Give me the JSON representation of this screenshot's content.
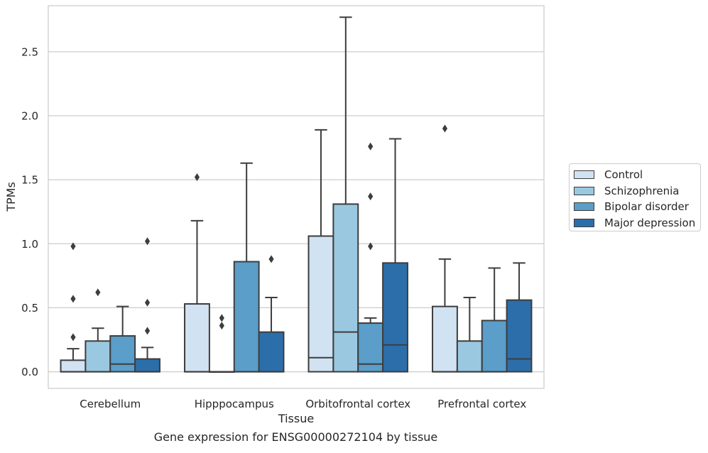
{
  "chart_data": {
    "type": "box",
    "title": "",
    "xlabel": "Tissue",
    "ylabel": "TPMs",
    "caption": "Gene expression for ENSG00000272104 by tissue",
    "ylim": [
      -0.13,
      2.86
    ],
    "yticks": [
      "0.0",
      "0.5",
      "1.0",
      "1.5",
      "2.0",
      "2.5"
    ],
    "grid": "horizontal",
    "legend_position": "right",
    "categories": [
      "Cerebellum",
      "Hipppocampus",
      "Orbitofrontal cortex",
      "Prefrontal cortex"
    ],
    "series": [
      {
        "name": "Control",
        "color": "#d1e2f2",
        "boxes": [
          {
            "whisker_low": 0.0,
            "q1": 0.0,
            "median": 0.0,
            "q3": 0.09,
            "whisker_high": 0.18,
            "outliers": [
              0.27,
              0.57,
              0.98
            ]
          },
          {
            "whisker_low": 0.0,
            "q1": 0.0,
            "median": 0.0,
            "q3": 0.53,
            "whisker_high": 1.18,
            "outliers": [
              1.52
            ]
          },
          {
            "whisker_low": 0.0,
            "q1": 0.0,
            "median": 0.11,
            "q3": 1.06,
            "whisker_high": 1.89,
            "outliers": []
          },
          {
            "whisker_low": 0.0,
            "q1": 0.0,
            "median": 0.0,
            "q3": 0.51,
            "whisker_high": 0.88,
            "outliers": [
              1.9
            ]
          }
        ]
      },
      {
        "name": "Schizophrenia",
        "color": "#9ac8e0",
        "boxes": [
          {
            "whisker_low": 0.0,
            "q1": 0.0,
            "median": 0.0,
            "q3": 0.24,
            "whisker_high": 0.34,
            "outliers": [
              0.62
            ]
          },
          {
            "whisker_low": 0.0,
            "q1": 0.0,
            "median": 0.0,
            "q3": 0.0,
            "whisker_high": 0.0,
            "outliers": [
              0.36,
              0.42
            ]
          },
          {
            "whisker_low": 0.0,
            "q1": 0.0,
            "median": 0.31,
            "q3": 1.31,
            "whisker_high": 2.77,
            "outliers": []
          },
          {
            "whisker_low": 0.0,
            "q1": 0.0,
            "median": 0.0,
            "q3": 0.24,
            "whisker_high": 0.58,
            "outliers": []
          }
        ]
      },
      {
        "name": "Bipolar disorder",
        "color": "#5a9ec9",
        "boxes": [
          {
            "whisker_low": 0.0,
            "q1": 0.0,
            "median": 0.06,
            "q3": 0.28,
            "whisker_high": 0.51,
            "outliers": []
          },
          {
            "whisker_low": 0.0,
            "q1": 0.0,
            "median": 0.0,
            "q3": 0.86,
            "whisker_high": 1.63,
            "outliers": []
          },
          {
            "whisker_low": 0.0,
            "q1": 0.0,
            "median": 0.06,
            "q3": 0.38,
            "whisker_high": 0.42,
            "outliers": [
              0.98,
              1.37,
              1.76
            ]
          },
          {
            "whisker_low": 0.0,
            "q1": 0.0,
            "median": 0.0,
            "q3": 0.4,
            "whisker_high": 0.81,
            "outliers": []
          }
        ]
      },
      {
        "name": "Major depression",
        "color": "#2c6ea9",
        "boxes": [
          {
            "whisker_low": 0.0,
            "q1": 0.0,
            "median": 0.0,
            "q3": 0.1,
            "whisker_high": 0.19,
            "outliers": [
              0.32,
              0.54,
              1.02
            ]
          },
          {
            "whisker_low": 0.0,
            "q1": 0.0,
            "median": 0.0,
            "q3": 0.31,
            "whisker_high": 0.58,
            "outliers": [
              0.88
            ]
          },
          {
            "whisker_low": 0.0,
            "q1": 0.0,
            "median": 0.21,
            "q3": 0.85,
            "whisker_high": 1.82,
            "outliers": []
          },
          {
            "whisker_low": 0.0,
            "q1": 0.0,
            "median": 0.1,
            "q3": 0.56,
            "whisker_high": 0.85,
            "outliers": []
          }
        ]
      }
    ]
  }
}
